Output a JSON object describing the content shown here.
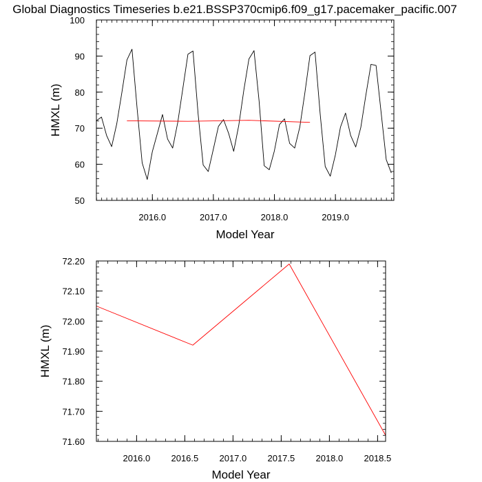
{
  "title": "Global Diagnostics Timeseries b.e21.BSSP370cmip6.f09_g17.pacemaker_pacific.007",
  "chart_data": [
    {
      "type": "line",
      "xlabel": "Model Year",
      "ylabel": "HMXL (m)",
      "xlim": [
        2015.083,
        2019.958
      ],
      "ylim": [
        50,
        100
      ],
      "x_tick_values": [
        2016.0,
        2017.0,
        2018.0,
        2019.0
      ],
      "x_tick_labels": [
        "2016.0",
        "2017.0",
        "2018.0",
        "2019.0"
      ],
      "y_tick_values": [
        50,
        60,
        70,
        80,
        90,
        100
      ],
      "y_tick_labels": [
        "50",
        "60",
        "70",
        "80",
        "90",
        "100"
      ],
      "series": [
        {
          "color": "#000000",
          "x_start": 2015.083,
          "x_step": 0.08333,
          "values": [
            72.1,
            73.1,
            68.0,
            64.9,
            71.2,
            79.8,
            88.9,
            91.9,
            75.6,
            60.4,
            55.8,
            63.5,
            68.6,
            73.8,
            67.0,
            64.5,
            71.6,
            81.0,
            90.5,
            91.4,
            74.0,
            59.8,
            58.0,
            64.2,
            70.5,
            72.4,
            68.6,
            63.6,
            70.8,
            80.6,
            89.2,
            91.5,
            77.5,
            59.6,
            58.5,
            63.7,
            71.0,
            72.6,
            65.8,
            64.5,
            70.3,
            79.8,
            90.1,
            91.1,
            74.1,
            59.4,
            56.7,
            62.6,
            70.3,
            74.2,
            68.0,
            64.8,
            70.2,
            79.2,
            87.7,
            87.4,
            74.3,
            61.3,
            57.6
          ]
        },
        {
          "color": "#ff0000",
          "x": [
            2015.583,
            2016.583,
            2017.583,
            2018.583
          ],
          "values": [
            72.05,
            71.92,
            72.19,
            71.62
          ]
        }
      ]
    },
    {
      "type": "line",
      "xlabel": "Model Year",
      "ylabel": "HMXL (m)",
      "xlim": [
        2015.583,
        2018.583
      ],
      "ylim": [
        71.6,
        72.2
      ],
      "x_tick_values": [
        2016.0,
        2016.5,
        2017.0,
        2017.5,
        2018.0,
        2018.5
      ],
      "x_tick_labels": [
        "2016.0",
        "2016.5",
        "2017.0",
        "2017.5",
        "2018.0",
        "2018.5"
      ],
      "y_tick_values": [
        71.6,
        71.7,
        71.8,
        71.9,
        72.0,
        72.1,
        72.2
      ],
      "y_tick_labels": [
        "71.60",
        "71.70",
        "71.80",
        "71.90",
        "72.00",
        "72.10",
        "72.20"
      ],
      "series": [
        {
          "color": "#ff0000",
          "x": [
            2015.583,
            2016.583,
            2017.583,
            2018.583
          ],
          "values": [
            72.05,
            71.92,
            72.19,
            71.62
          ]
        }
      ]
    }
  ]
}
